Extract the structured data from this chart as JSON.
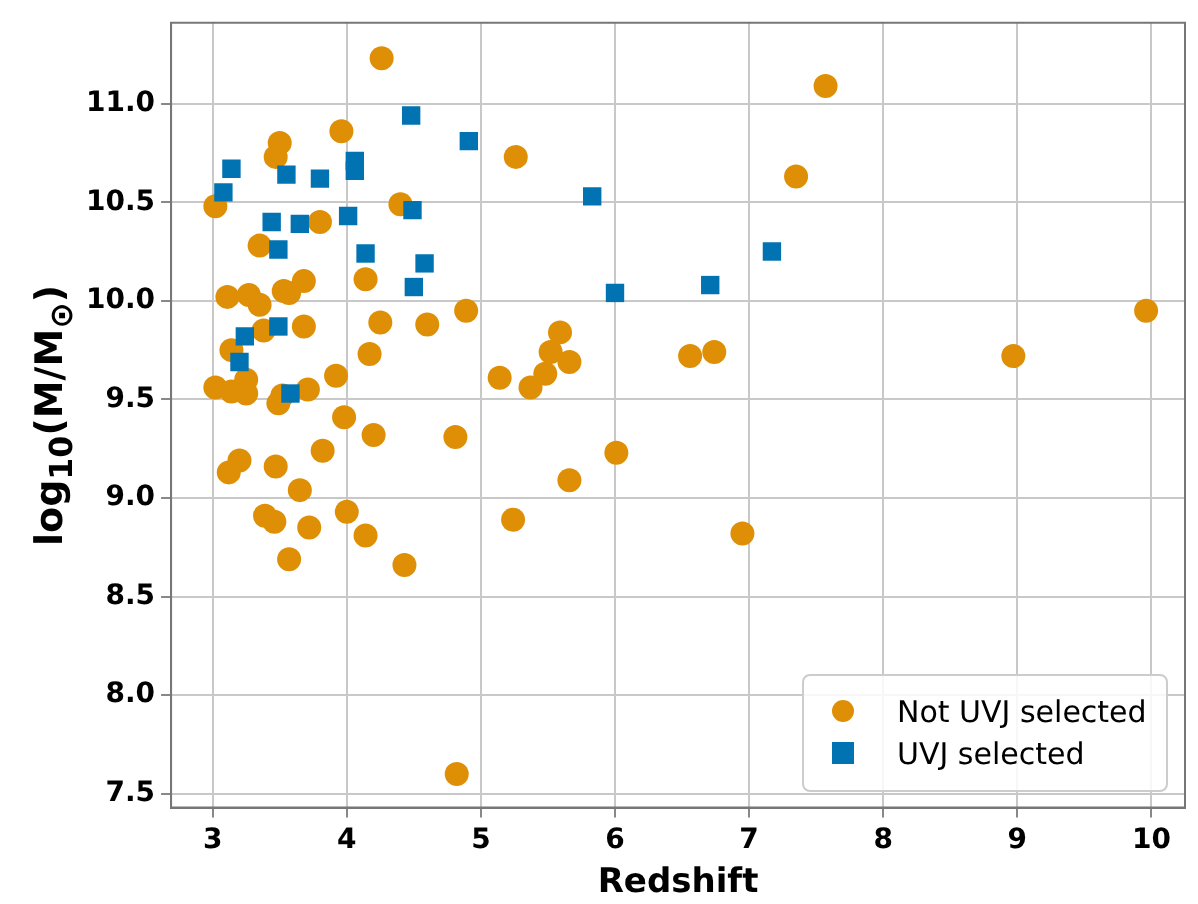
{
  "chart_data": {
    "type": "scatter",
    "xlabel": "Redshift",
    "ylabel": "log$_{10}$(M/M$_{⊙}$)",
    "xlim": [
      2.69,
      10.25
    ],
    "ylim": [
      7.43,
      11.41
    ],
    "xticks": [
      3,
      4,
      5,
      6,
      7,
      8,
      9,
      10
    ],
    "yticks": [
      7.5,
      {
        "value": 8,
        "label": "8.0"
      },
      8.5,
      {
        "value": 9,
        "label": "9.0"
      },
      9.5,
      {
        "value": 10,
        "label": "10.0"
      },
      10.5,
      {
        "value": 11,
        "label": "11.0"
      }
    ],
    "grid": true,
    "legend": "bottom right",
    "series": [
      {
        "name": "Not UVJ selected",
        "color": "#de8f05",
        "marker": "circle",
        "x": [
          3.02,
          4.26,
          5.26,
          3.96,
          3.5,
          3.47,
          4.4,
          3.8,
          3.35,
          4.14,
          3.11,
          3.27,
          3.35,
          3.53,
          3.57,
          3.68,
          4.89,
          4.25,
          4.6,
          3.38,
          3.68,
          3.14,
          4.17,
          3.92,
          5.14,
          3.02,
          3.14,
          3.25,
          3.25,
          3.52,
          3.49,
          3.71,
          3.12,
          3.2,
          3.47,
          3.82,
          3.65,
          3.39,
          3.46,
          3.72,
          3.57,
          4.0,
          4.14,
          4.43,
          4.81,
          4.2,
          3.98,
          4.82,
          5.24,
          7.57,
          7.35,
          9.96,
          5.59,
          5.52,
          5.66,
          5.48,
          5.37,
          6.56,
          6.74,
          8.97,
          6.01,
          5.66,
          6.95
        ],
        "values": [
          10.48,
          11.23,
          10.73,
          10.86,
          10.8,
          10.73,
          10.49,
          10.4,
          10.28,
          10.11,
          10.02,
          10.03,
          9.98,
          10.05,
          10.04,
          10.1,
          9.95,
          9.89,
          9.88,
          9.85,
          9.87,
          9.75,
          9.73,
          9.62,
          9.61,
          9.56,
          9.54,
          9.6,
          9.53,
          9.52,
          9.48,
          9.55,
          9.13,
          9.19,
          9.16,
          9.24,
          9.04,
          8.91,
          8.88,
          8.85,
          8.69,
          8.93,
          8.81,
          8.66,
          9.31,
          9.32,
          9.41,
          7.6,
          8.89,
          11.09,
          10.63,
          9.95,
          9.84,
          9.74,
          9.69,
          9.63,
          9.56,
          9.72,
          9.74,
          9.72,
          9.23,
          9.09,
          8.82
        ]
      },
      {
        "name": "UVJ selected",
        "color": "#0173b2",
        "marker": "square",
        "x": [
          4.48,
          4.91,
          3.14,
          3.55,
          3.8,
          4.06,
          4.06,
          3.08,
          4.49,
          3.44,
          3.65,
          4.01,
          3.49,
          4.14,
          4.58,
          4.5,
          3.49,
          3.24,
          3.2,
          3.58,
          5.83,
          7.17,
          6.71,
          6.0
        ],
        "values": [
          10.94,
          10.81,
          10.67,
          10.64,
          10.62,
          10.71,
          10.66,
          10.55,
          10.46,
          10.4,
          10.39,
          10.43,
          10.26,
          10.24,
          10.19,
          10.07,
          9.87,
          9.82,
          9.69,
          9.53,
          10.53,
          10.25,
          10.08,
          10.04
        ]
      }
    ]
  }
}
